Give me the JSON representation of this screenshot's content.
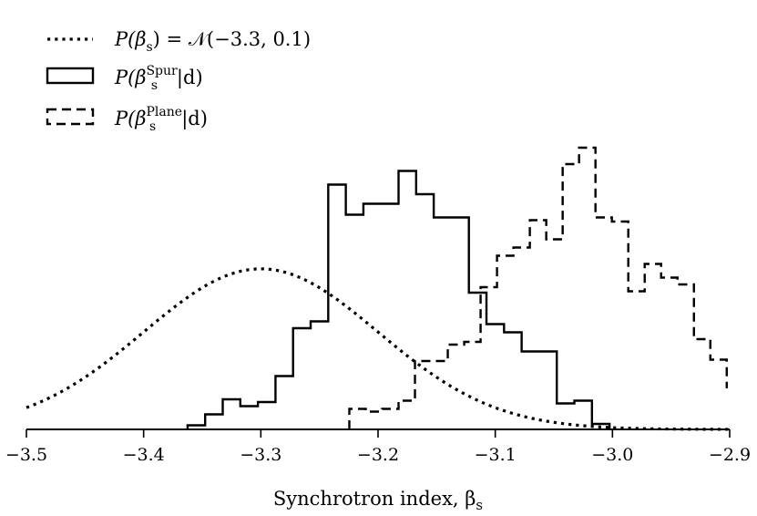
{
  "chart_data": {
    "type": "line",
    "xlabel": "Synchrotron index, β",
    "xlabel_sub": "s",
    "xlim": [
      -3.5,
      -2.9
    ],
    "ylim": [
      0,
      1.0
    ],
    "xticks": [
      -3.5,
      -3.4,
      -3.3,
      -3.2,
      -3.1,
      -3.0,
      -2.9
    ],
    "xtick_labels": [
      "−3.5",
      "−3.4",
      "−3.3",
      "−3.2",
      "−3.1",
      "−3.0",
      "−2.9"
    ],
    "y_axis_visible": false,
    "grid": false,
    "legend_position": "top-left",
    "series": [
      {
        "name": "P(βs) = N(−3.3, 0.1)",
        "legend": {
          "pre": "P(β",
          "sub": "s",
          "post": ") = 𝒩(−3.3, 0.1)"
        },
        "style": "dotted",
        "kind": "gaussian",
        "mean": -3.3,
        "sigma": 0.1,
        "peak": 0.587
      },
      {
        "name": "P(βsSpur|d)",
        "legend": {
          "pre": "P(β",
          "sub": "s",
          "sup": "Spur",
          "post": "|d)"
        },
        "style": "solid",
        "kind": "step",
        "edges": [
          -3.3625,
          -3.3475,
          -3.3325,
          -3.3175,
          -3.3025,
          -3.2875,
          -3.2725,
          -3.2575,
          -3.2425,
          -3.2275,
          -3.2125,
          -3.1975,
          -3.1825,
          -3.1675,
          -3.1525,
          -3.1375,
          -3.1225,
          -3.1075,
          -3.0925,
          -3.0775,
          -3.0625,
          -3.0475,
          -3.0325,
          -3.0175,
          -3.0025
        ],
        "values": [
          0.015,
          0.055,
          0.11,
          0.085,
          0.1,
          0.195,
          0.37,
          0.395,
          0.895,
          0.785,
          0.825,
          0.825,
          0.945,
          0.86,
          0.775,
          0.775,
          0.5,
          0.385,
          0.355,
          0.285,
          0.285,
          0.095,
          0.105,
          0.02
        ]
      },
      {
        "name": "P(βsPlane|d)",
        "legend": {
          "pre": "P(β",
          "sub": "s",
          "sup": "Plane",
          "post": "|d)"
        },
        "style": "dashed",
        "kind": "step",
        "edges": [
          -3.2245,
          -3.2105,
          -3.1965,
          -3.1825,
          -3.1685,
          -3.1545,
          -3.1405,
          -3.1265,
          -3.1125,
          -3.0985,
          -3.0845,
          -3.0705,
          -3.0565,
          -3.0425,
          -3.0285,
          -3.0145,
          -3.0005,
          -2.9865,
          -2.9725,
          -2.9585,
          -2.9445,
          -2.9305,
          -2.9165,
          -2.9025
        ],
        "values": [
          0.075,
          0.065,
          0.075,
          0.105,
          0.25,
          0.25,
          0.31,
          0.32,
          0.52,
          0.635,
          0.665,
          0.765,
          0.695,
          0.97,
          1.03,
          0.775,
          0.76,
          0.505,
          0.605,
          0.555,
          0.53,
          0.33,
          0.255,
          0.15
        ]
      }
    ]
  }
}
